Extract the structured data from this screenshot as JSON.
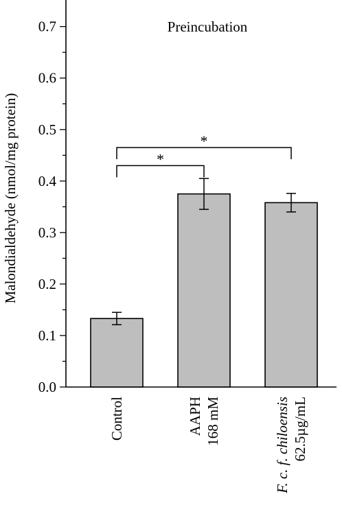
{
  "chart_data": {
    "type": "bar",
    "title": "Preincubation",
    "ylabel": "Malondialdehyde (nmol/mg protein)",
    "xlabel": "",
    "ylim": [
      0,
      0.75
    ],
    "yticks": [
      "0.0",
      "0.1",
      "0.2",
      "0.3",
      "0.4",
      "0.5",
      "0.6",
      "0.7"
    ],
    "categories": [
      {
        "lines": [
          {
            "text": "Control",
            "italic": false
          }
        ]
      },
      {
        "lines": [
          {
            "text": "AAPH",
            "italic": false
          },
          {
            "text": "168 mM",
            "italic": false
          }
        ]
      },
      {
        "lines": [
          {
            "text": "F. c. f. chiloensis",
            "italic": true
          },
          {
            "text": "62.5µg/mL",
            "italic": false
          }
        ]
      }
    ],
    "values": [
      0.133,
      0.375,
      0.358
    ],
    "errors": [
      0.012,
      0.03,
      0.018
    ],
    "bar_color": "#bebebe",
    "grid": false,
    "significance": [
      {
        "from": 0,
        "to": 1,
        "y": 0.43,
        "label": "*"
      },
      {
        "from": 0,
        "to": 2,
        "y": 0.465,
        "label": "*"
      }
    ]
  }
}
